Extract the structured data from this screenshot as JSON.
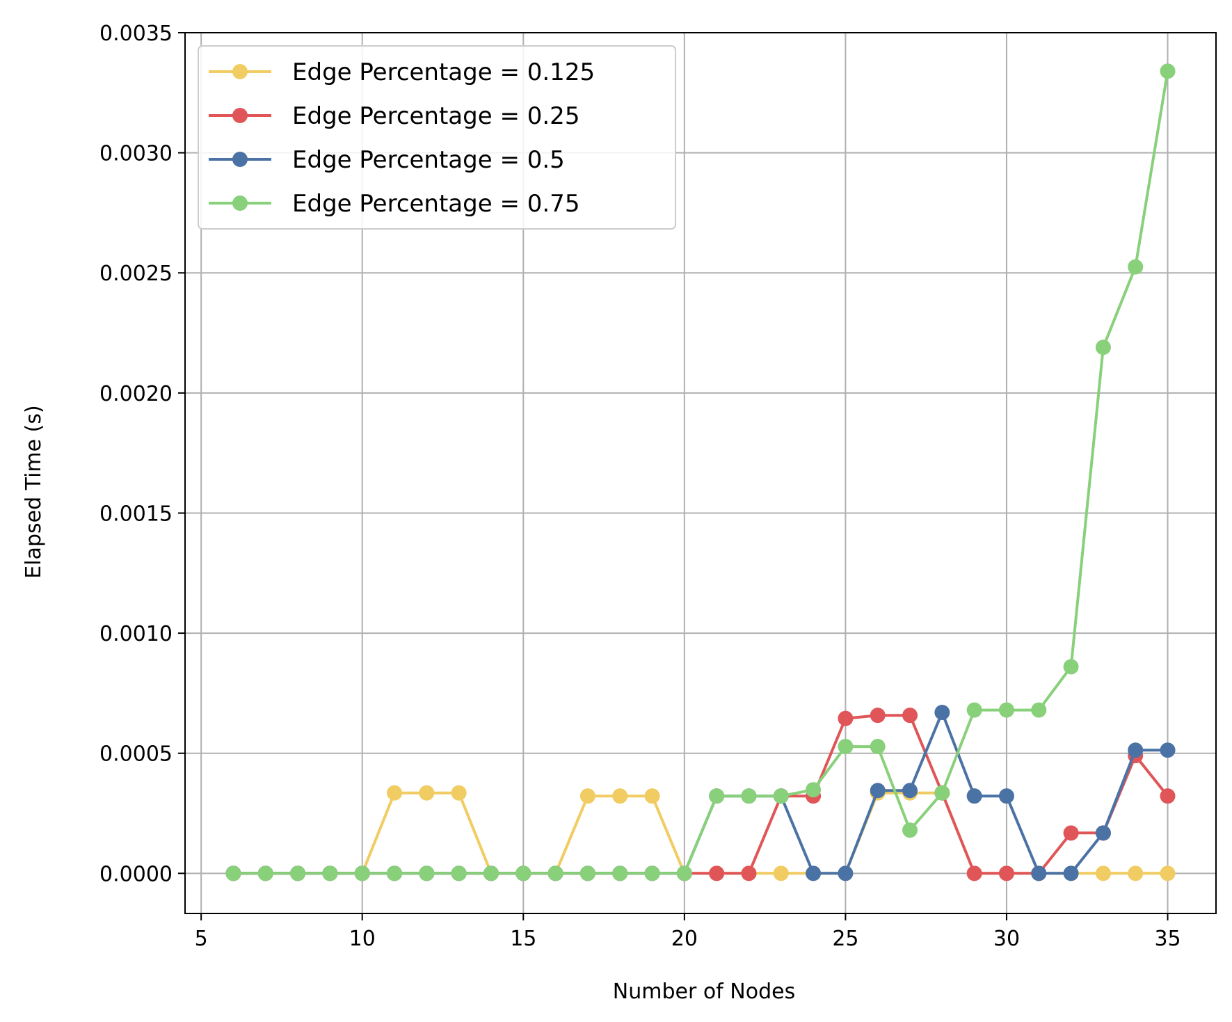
{
  "chart_data": {
    "type": "line",
    "title": "",
    "xlabel": "Number of Nodes",
    "ylabel": "Elapsed Time (s)",
    "xlim": [
      4.5,
      36.5
    ],
    "ylim": [
      -0.000167,
      0.0035
    ],
    "xticks": [
      5,
      10,
      15,
      20,
      25,
      30,
      35
    ],
    "xtick_labels": [
      "5",
      "10",
      "15",
      "20",
      "25",
      "30",
      "35"
    ],
    "yticks": [
      0,
      0.0005,
      0.001,
      0.0015,
      0.002,
      0.0025,
      0.003,
      0.0035
    ],
    "ytick_labels": [
      "0.0000",
      "0.0005",
      "0.0010",
      "0.0015",
      "0.0020",
      "0.0025",
      "0.0030",
      "0.0035"
    ],
    "grid": true,
    "legend_position": "top-left",
    "x": [
      6,
      7,
      8,
      9,
      10,
      11,
      12,
      13,
      14,
      15,
      16,
      17,
      18,
      19,
      20,
      21,
      22,
      23,
      24,
      25,
      26,
      27,
      28,
      29,
      30,
      31,
      32,
      33,
      34,
      35
    ],
    "series": [
      {
        "name": "Edge Percentage = 0.125",
        "color": "#f0cc62",
        "values": [
          0,
          0,
          0,
          0,
          0,
          0.000335,
          0.000335,
          0.000335,
          0,
          0,
          0,
          0.000322,
          0.000322,
          0.000322,
          0,
          0,
          0,
          0,
          0,
          0,
          0.000335,
          0.000335,
          0.000335,
          0,
          0,
          0,
          0,
          0,
          0,
          0
        ]
      },
      {
        "name": "Edge Percentage = 0.25",
        "color": "#e05558",
        "values": [
          0,
          0,
          0,
          0,
          0,
          0,
          0,
          0,
          0,
          0,
          0,
          0,
          0,
          0,
          0,
          0,
          0,
          0.000322,
          0.000322,
          0.000645,
          0.000658,
          0.000658,
          0.000335,
          0,
          0,
          0,
          0.000168,
          0.000168,
          0.00049,
          0.000322
        ]
      },
      {
        "name": "Edge Percentage = 0.5",
        "color": "#4a72a5",
        "values": [
          0,
          0,
          0,
          0,
          0,
          0,
          0,
          0,
          0,
          0,
          0,
          0,
          0,
          0,
          0,
          0.000322,
          0.000322,
          0.000322,
          0,
          0,
          0.000345,
          0.000345,
          0.00067,
          0.000322,
          0.000322,
          0,
          0,
          0.000168,
          0.000513,
          0.000513
        ]
      },
      {
        "name": "Edge Percentage = 0.75",
        "color": "#88d07a",
        "values": [
          0,
          0,
          0,
          0,
          0,
          0,
          0,
          0,
          0,
          0,
          0,
          0,
          0,
          0,
          0,
          0.000322,
          0.000322,
          0.000322,
          0.000348,
          0.000528,
          0.000528,
          0.00018,
          0.000335,
          0.00068,
          0.00068,
          0.00068,
          0.00086,
          0.00219,
          0.002525,
          0.00334
        ]
      }
    ]
  }
}
